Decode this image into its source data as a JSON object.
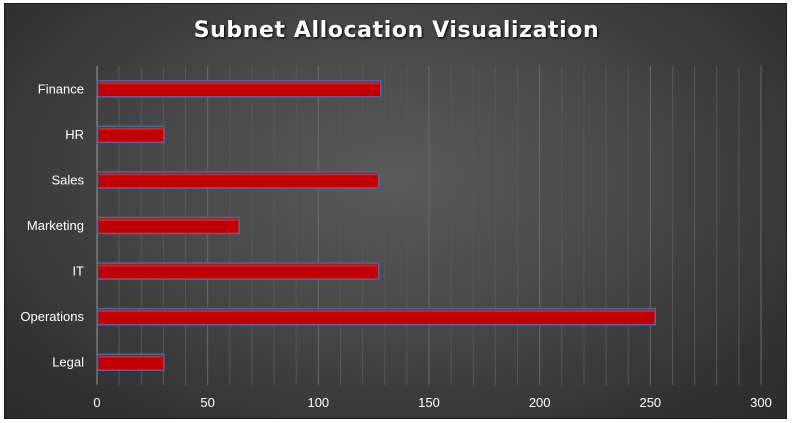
{
  "chart_data": {
    "type": "bar",
    "orientation": "horizontal",
    "title": "Subnet Allocation Visualization",
    "categories": [
      "Finance",
      "HR",
      "Sales",
      "Marketing",
      "IT",
      "Operations",
      "Legal"
    ],
    "values": [
      128,
      30,
      127,
      64,
      127,
      252,
      30
    ],
    "xlim": [
      0,
      300
    ],
    "xticks": [
      "0",
      "50",
      "100",
      "150",
      "200",
      "250",
      "300"
    ],
    "grid": "vertical-minor",
    "legend": "none"
  },
  "colors": {
    "bar_fill": "#c00000",
    "bar_stroke": "#4a6aa8",
    "background": "#444444",
    "text": "#ffffff"
  }
}
